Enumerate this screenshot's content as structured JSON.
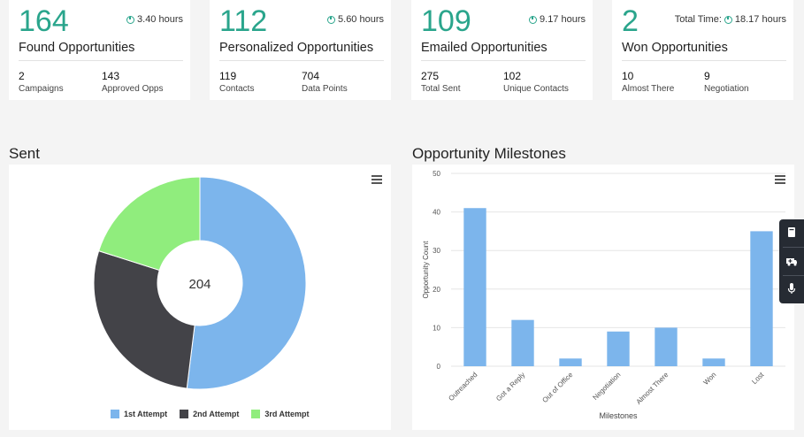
{
  "cards": [
    {
      "value": "164",
      "time": "3.40 hours",
      "time_prefix": "",
      "title": "Found Opportunities",
      "stats": [
        {
          "value": "2",
          "label": "Campaigns"
        },
        {
          "value": "143",
          "label": "Approved Opps"
        }
      ]
    },
    {
      "value": "112",
      "time": "5.60 hours",
      "time_prefix": "",
      "title": "Personalized Opportunities",
      "stats": [
        {
          "value": "119",
          "label": "Contacts"
        },
        {
          "value": "704",
          "label": "Data Points"
        }
      ]
    },
    {
      "value": "109",
      "time": "9.17 hours",
      "time_prefix": "",
      "title": "Emailed Opportunities",
      "stats": [
        {
          "value": "275",
          "label": "Total Sent"
        },
        {
          "value": "102",
          "label": "Unique Contacts"
        }
      ]
    },
    {
      "value": "2",
      "time": "18.17 hours",
      "time_prefix": "Total Time:",
      "title": "Won Opportunities",
      "stats": [
        {
          "value": "10",
          "label": "Almost There"
        },
        {
          "value": "9",
          "label": "Negotiation"
        }
      ]
    }
  ],
  "sent": {
    "title": "Sent",
    "center_label": "204",
    "colors": [
      "#7cb5ec",
      "#434348",
      "#90ed7d"
    ],
    "legend": [
      "1st Attempt",
      "2nd Attempt",
      "3rd Attempt"
    ]
  },
  "milestones": {
    "title": "Opportunity Milestones"
  },
  "chart_data": [
    {
      "type": "pie",
      "title": "Sent",
      "categories": [
        "1st Attempt",
        "2nd Attempt",
        "3rd Attempt"
      ],
      "values": [
        106,
        57,
        41
      ],
      "center_label": "204",
      "legend_position": "bottom-center"
    },
    {
      "type": "bar",
      "title": "Opportunity Milestones",
      "categories": [
        "Outreached",
        "Got a Reply",
        "Out of Office",
        "Negotiation",
        "Almost There",
        "Won",
        "Lost"
      ],
      "values": [
        41,
        12,
        2,
        9,
        10,
        2,
        35
      ],
      "xlabel": "Milestones",
      "ylabel": "Opportunity Count",
      "ylim": [
        0,
        50
      ],
      "yticks": [
        "0",
        "10",
        "20",
        "30",
        "40",
        "50"
      ],
      "grid": true,
      "color": "#7cb5ec"
    }
  ]
}
